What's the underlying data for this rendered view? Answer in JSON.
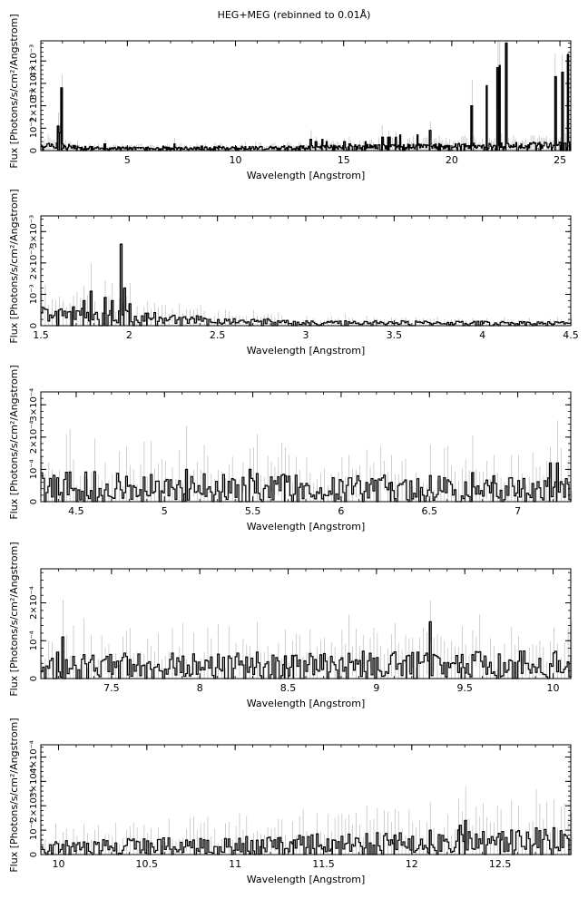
{
  "title": "HEG+MEG (rebinned to 0.01Å)",
  "colors": {
    "data": "#000000",
    "error": "#bbbbbb",
    "axes": "#000000"
  },
  "chart_data": [
    {
      "type": "line",
      "xlabel": "Wavelength [Angstrom]",
      "ylabel": "Flux [Photons/s/cm²/Angstrom]",
      "xlim": [
        1.0,
        25.5
      ],
      "ylim": [
        0,
        0.0049
      ],
      "xticks": [
        5,
        10,
        15,
        20,
        25
      ],
      "xtick_labels": [
        "5",
        "10",
        "15",
        "20",
        "25"
      ],
      "yticks": [
        0,
        0.001,
        0.002,
        0.003,
        0.004
      ],
      "ytick_labels": [
        "0",
        "10⁻³",
        "2×10⁻³",
        "3×10⁻³",
        "4×10⁻³"
      ],
      "lines": [
        {
          "x": 1.78,
          "y": 0.0011
        },
        {
          "x": 1.86,
          "y": 0.0008
        },
        {
          "x": 1.95,
          "y": 0.0028
        },
        {
          "x": 3.95,
          "y": 0.0003
        },
        {
          "x": 6.65,
          "y": 0.0002
        },
        {
          "x": 7.17,
          "y": 0.0003
        },
        {
          "x": 8.42,
          "y": 0.0002
        },
        {
          "x": 9.22,
          "y": 0.0002
        },
        {
          "x": 13.45,
          "y": 0.0005
        },
        {
          "x": 13.7,
          "y": 0.0004
        },
        {
          "x": 14.0,
          "y": 0.0005
        },
        {
          "x": 14.2,
          "y": 0.0004
        },
        {
          "x": 15.01,
          "y": 0.0004
        },
        {
          "x": 15.26,
          "y": 0.0003
        },
        {
          "x": 16.0,
          "y": 0.0004
        },
        {
          "x": 16.78,
          "y": 0.0006
        },
        {
          "x": 17.05,
          "y": 0.0006
        },
        {
          "x": 17.1,
          "y": 0.0006
        },
        {
          "x": 17.4,
          "y": 0.0006
        },
        {
          "x": 17.6,
          "y": 0.0007
        },
        {
          "x": 18.4,
          "y": 0.0007
        },
        {
          "x": 18.97,
          "y": 0.0009
        },
        {
          "x": 20.9,
          "y": 0.002
        },
        {
          "x": 21.6,
          "y": 0.0029
        },
        {
          "x": 22.1,
          "y": 0.0037
        },
        {
          "x": 22.2,
          "y": 0.0038
        },
        {
          "x": 22.5,
          "y": 0.0048
        },
        {
          "x": 24.78,
          "y": 0.0033
        },
        {
          "x": 25.1,
          "y": 0.0035
        },
        {
          "x": 25.35,
          "y": 0.0043
        }
      ],
      "continuum": [
        [
          1.0,
          0.0003
        ],
        [
          2.0,
          0.0002
        ],
        [
          3.0,
          0.00012
        ],
        [
          6.0,
          0.0001
        ],
        [
          12.0,
          0.00013
        ],
        [
          16.0,
          0.00017
        ],
        [
          20.0,
          0.0002
        ],
        [
          25.5,
          0.00025
        ]
      ],
      "noise": 0.6,
      "err_scale": 0.8,
      "step": 0.04
    },
    {
      "type": "line",
      "xlabel": "Wavelength [Angstrom]",
      "ylabel": "Flux [Photons/s/cm²/Angstrom]",
      "xlim": [
        1.5,
        4.5
      ],
      "ylim": [
        0,
        0.0035
      ],
      "xticks": [
        1.5,
        2,
        2.5,
        3,
        3.5,
        4,
        4.5
      ],
      "xtick_labels": [
        "1.5",
        "2",
        "2.5",
        "3",
        "3.5",
        "4",
        "4.5"
      ],
      "yticks": [
        0,
        0.001,
        0.002,
        0.003
      ],
      "ytick_labels": [
        "0",
        "10⁻³",
        "2×10⁻³",
        "3×10⁻³"
      ],
      "lines": [
        {
          "x": 1.6,
          "y": 0.0005
        },
        {
          "x": 1.68,
          "y": 0.0006
        },
        {
          "x": 1.74,
          "y": 0.0008
        },
        {
          "x": 1.78,
          "y": 0.0011
        },
        {
          "x": 1.86,
          "y": 0.0009
        },
        {
          "x": 1.9,
          "y": 0.0008
        },
        {
          "x": 1.95,
          "y": 0.0026
        },
        {
          "x": 1.97,
          "y": 0.0012
        },
        {
          "x": 2.0,
          "y": 0.0007
        },
        {
          "x": 2.1,
          "y": 0.0004
        }
      ],
      "continuum": [
        [
          1.5,
          0.00035
        ],
        [
          2.0,
          0.0003
        ],
        [
          2.4,
          0.00018
        ],
        [
          3.0,
          0.0001
        ],
        [
          4.5,
          8e-05
        ]
      ],
      "noise": 0.7,
      "err_scale": 1.0,
      "step": 0.01
    },
    {
      "type": "line",
      "xlabel": "Wavelength [Angstrom]",
      "ylabel": "Flux [Photons/s/cm²/Angstrom]",
      "xlim": [
        4.3,
        7.3
      ],
      "ylim": [
        0,
        0.00034
      ],
      "xticks": [
        4.5,
        5,
        5.5,
        6,
        6.5,
        7
      ],
      "xtick_labels": [
        "4.5",
        "5",
        "5.5",
        "6",
        "6.5",
        "7"
      ],
      "yticks": [
        0,
        0.0001,
        0.0002,
        0.0003
      ],
      "ytick_labels": [
        "0",
        "10⁻⁴",
        "2×10⁻⁴",
        "3×10⁻⁴"
      ],
      "lines": [
        {
          "x": 5.12,
          "y": 0.0001
        },
        {
          "x": 5.48,
          "y": 0.0001
        },
        {
          "x": 5.68,
          "y": 8e-05
        },
        {
          "x": 6.28,
          "y": 6e-05
        },
        {
          "x": 6.74,
          "y": 9e-05
        },
        {
          "x": 6.86,
          "y": 8e-05
        },
        {
          "x": 7.18,
          "y": 0.00012
        },
        {
          "x": 7.22,
          "y": 0.00012
        }
      ],
      "continuum": [
        [
          4.3,
          5e-05
        ],
        [
          7.3,
          4e-05
        ]
      ],
      "noise": 0.9,
      "err_scale": 1.2,
      "step": 0.01
    },
    {
      "type": "line",
      "xlabel": "Wavelength [Angstrom]",
      "ylabel": "Flux [Photons/s/cm²/Angstrom]",
      "xlim": [
        7.1,
        10.1
      ],
      "ylim": [
        0,
        0.00029
      ],
      "xticks": [
        7.5,
        8,
        8.5,
        9,
        9.5,
        10
      ],
      "xtick_labels": [
        "7.5",
        "8",
        "8.5",
        "9",
        "9.5",
        "10"
      ],
      "yticks": [
        0,
        0.0001,
        0.0002
      ],
      "ytick_labels": [
        "0",
        "10⁻⁴",
        "2×10⁻⁴"
      ],
      "lines": [
        {
          "x": 7.19,
          "y": 7e-05
        },
        {
          "x": 7.22,
          "y": 0.00011
        },
        {
          "x": 8.48,
          "y": 6e-05
        },
        {
          "x": 8.53,
          "y": 6e-05
        },
        {
          "x": 9.17,
          "y": 6e-05
        },
        {
          "x": 9.23,
          "y": 7e-05
        },
        {
          "x": 9.3,
          "y": 0.00015
        },
        {
          "x": 9.48,
          "y": 3e-05
        }
      ],
      "continuum": [
        [
          7.1,
          3.5e-05
        ],
        [
          10.1,
          4e-05
        ]
      ],
      "noise": 0.9,
      "err_scale": 1.2,
      "step": 0.01
    },
    {
      "type": "line",
      "xlabel": "Wavelength [Angstrom]",
      "ylabel": "Flux [Photons/s/cm²/Angstrom]",
      "xlim": [
        9.9,
        12.9
      ],
      "ylim": [
        0,
        0.00045
      ],
      "xticks": [
        10,
        10.5,
        11,
        11.5,
        12,
        12.5
      ],
      "xtick_labels": [
        "10",
        "10.5",
        "11",
        "11.5",
        "12",
        "12.5"
      ],
      "yticks": [
        0,
        0.0001,
        0.0002,
        0.0003,
        0.0004
      ],
      "ytick_labels": [
        "0",
        "10⁻⁴",
        "2×10⁻⁴",
        "3×10⁻⁴",
        "4×10⁻⁴"
      ],
      "lines": [
        {
          "x": 11.15,
          "y": 6e-05
        },
        {
          "x": 11.25,
          "y": 7e-05
        },
        {
          "x": 11.33,
          "y": 6e-05
        },
        {
          "x": 11.55,
          "y": 6e-05
        },
        {
          "x": 11.9,
          "y": 8e-05
        },
        {
          "x": 12.1,
          "y": 0.0001
        },
        {
          "x": 12.27,
          "y": 0.00012
        },
        {
          "x": 12.3,
          "y": 0.00014
        },
        {
          "x": 12.5,
          "y": 6e-05
        }
      ],
      "continuum": [
        [
          9.9,
          3e-05
        ],
        [
          11.0,
          4e-05
        ],
        [
          12.9,
          6e-05
        ]
      ],
      "noise": 0.9,
      "err_scale": 1.2,
      "step": 0.01
    }
  ]
}
